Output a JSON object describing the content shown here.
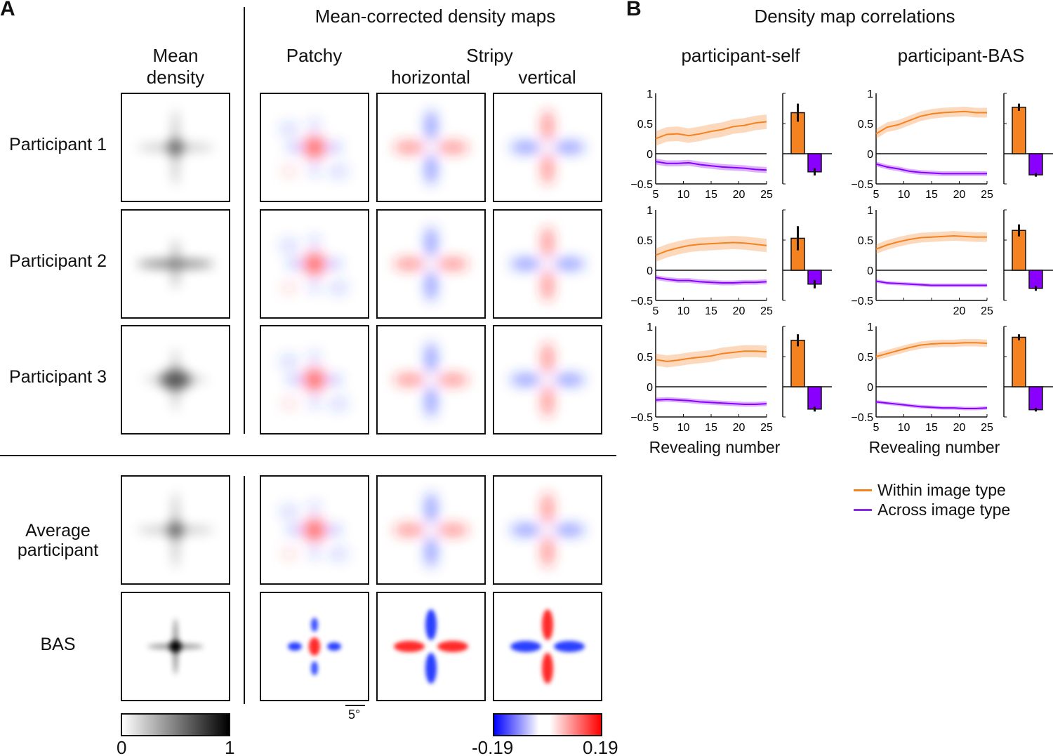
{
  "panelA": {
    "label": "A",
    "title": "Mean-corrected density maps",
    "col_mean": "Mean\ndensity",
    "col_patchy": "Patchy",
    "col_stripy": "Stripy",
    "col_horizontal": "horizontal",
    "col_vertical": "vertical",
    "rows": [
      "Participant 1",
      "Participant 2",
      "Participant 3",
      "Average\nparticipant",
      "BAS"
    ],
    "scale_bar": "5°",
    "gray_colorbar": {
      "min": "0",
      "max": "1"
    },
    "diverging_colorbar": {
      "min": "-0.19",
      "max": "0.19",
      "colors": [
        "#0000ff",
        "#ffffff",
        "#ff0000"
      ]
    }
  },
  "panelB": {
    "label": "B",
    "title": "Density map correlations",
    "col_titles": [
      "participant-self",
      "participant-BAS"
    ],
    "xlabel": "Revealing number",
    "legend": [
      {
        "label": "Within image type",
        "color": "#f58220"
      },
      {
        "label": "Across image type",
        "color": "#8a2be2"
      }
    ]
  },
  "chart_data": {
    "type": "line",
    "x": [
      5,
      7,
      9,
      11,
      13,
      15,
      17,
      19,
      21,
      23,
      25
    ],
    "ylim": [
      -0.5,
      1
    ],
    "yticks": [
      "1",
      "0.5",
      "0",
      "−0.5"
    ],
    "xlabel": "Revealing number",
    "legend_placement": "bottom",
    "series_colors": {
      "within": "#f58220",
      "across": "#8a00ff"
    },
    "panels": [
      {
        "row": 1,
        "comparison": "participant-self",
        "xticks": [
          "5",
          "10",
          "15",
          "20",
          "25"
        ],
        "within": [
          0.25,
          0.32,
          0.33,
          0.3,
          0.33,
          0.37,
          0.4,
          0.45,
          0.47,
          0.51,
          0.53
        ],
        "within_err": 0.12,
        "across": [
          -0.13,
          -0.16,
          -0.16,
          -0.15,
          -0.18,
          -0.2,
          -0.22,
          -0.23,
          -0.24,
          -0.26,
          -0.27
        ],
        "across_err": 0.05,
        "bar_within": 0.68,
        "bar_within_err": 0.15,
        "bar_across": -0.3,
        "bar_across_err": 0.06
      },
      {
        "row": 1,
        "comparison": "participant-BAS",
        "xticks": [
          "5",
          "10",
          "15",
          "20",
          "25"
        ],
        "within": [
          0.33,
          0.44,
          0.48,
          0.55,
          0.62,
          0.66,
          0.68,
          0.69,
          0.7,
          0.68,
          0.68
        ],
        "within_err": 0.08,
        "across": [
          -0.17,
          -0.22,
          -0.25,
          -0.29,
          -0.31,
          -0.32,
          -0.33,
          -0.33,
          -0.33,
          -0.33,
          -0.33
        ],
        "across_err": 0.04,
        "bar_within": 0.77,
        "bar_within_err": 0.06,
        "bar_across": -0.35,
        "bar_across_err": 0.03
      },
      {
        "row": 2,
        "comparison": "participant-self",
        "xticks": [
          "5",
          "10",
          "15",
          "20",
          "25"
        ],
        "within": [
          0.25,
          0.32,
          0.37,
          0.41,
          0.43,
          0.44,
          0.45,
          0.46,
          0.45,
          0.43,
          0.41
        ],
        "within_err": 0.11,
        "across": [
          -0.12,
          -0.15,
          -0.17,
          -0.17,
          -0.19,
          -0.2,
          -0.21,
          -0.21,
          -0.2,
          -0.2,
          -0.19
        ],
        "across_err": 0.04,
        "bar_within": 0.53,
        "bar_within_err": 0.2,
        "bar_across": -0.23,
        "bar_across_err": 0.07
      },
      {
        "row": 2,
        "comparison": "participant-BAS",
        "xticks": [
          "",
          "",
          "",
          "20",
          "25"
        ],
        "within": [
          0.35,
          0.42,
          0.47,
          0.51,
          0.54,
          0.55,
          0.56,
          0.57,
          0.56,
          0.55,
          0.55
        ],
        "within_err": 0.08,
        "across": [
          -0.18,
          -0.21,
          -0.22,
          -0.23,
          -0.24,
          -0.25,
          -0.25,
          -0.25,
          -0.25,
          -0.25,
          -0.25
        ],
        "across_err": 0.03,
        "bar_within": 0.66,
        "bar_within_err": 0.1,
        "bar_across": -0.3,
        "bar_across_err": 0.04
      },
      {
        "row": 3,
        "comparison": "participant-self",
        "xticks": [
          "5",
          "10",
          "15",
          "20",
          "25"
        ],
        "within": [
          0.45,
          0.42,
          0.44,
          0.47,
          0.49,
          0.51,
          0.55,
          0.57,
          0.59,
          0.59,
          0.58
        ],
        "within_err": 0.1,
        "across": [
          -0.22,
          -0.21,
          -0.22,
          -0.23,
          -0.25,
          -0.26,
          -0.27,
          -0.28,
          -0.29,
          -0.29,
          -0.28
        ],
        "across_err": 0.04,
        "bar_within": 0.77,
        "bar_within_err": 0.1,
        "bar_across": -0.37,
        "bar_across_err": 0.04
      },
      {
        "row": 3,
        "comparison": "participant-BAS",
        "xticks": [
          "5",
          "10",
          "15",
          "20",
          "25"
        ],
        "within": [
          0.5,
          0.55,
          0.6,
          0.65,
          0.69,
          0.71,
          0.72,
          0.72,
          0.73,
          0.73,
          0.72
        ],
        "within_err": 0.06,
        "across": [
          -0.25,
          -0.27,
          -0.29,
          -0.31,
          -0.33,
          -0.34,
          -0.35,
          -0.35,
          -0.36,
          -0.36,
          -0.35
        ],
        "across_err": 0.03,
        "bar_within": 0.82,
        "bar_within_err": 0.05,
        "bar_across": -0.38,
        "bar_across_err": 0.03
      }
    ]
  }
}
